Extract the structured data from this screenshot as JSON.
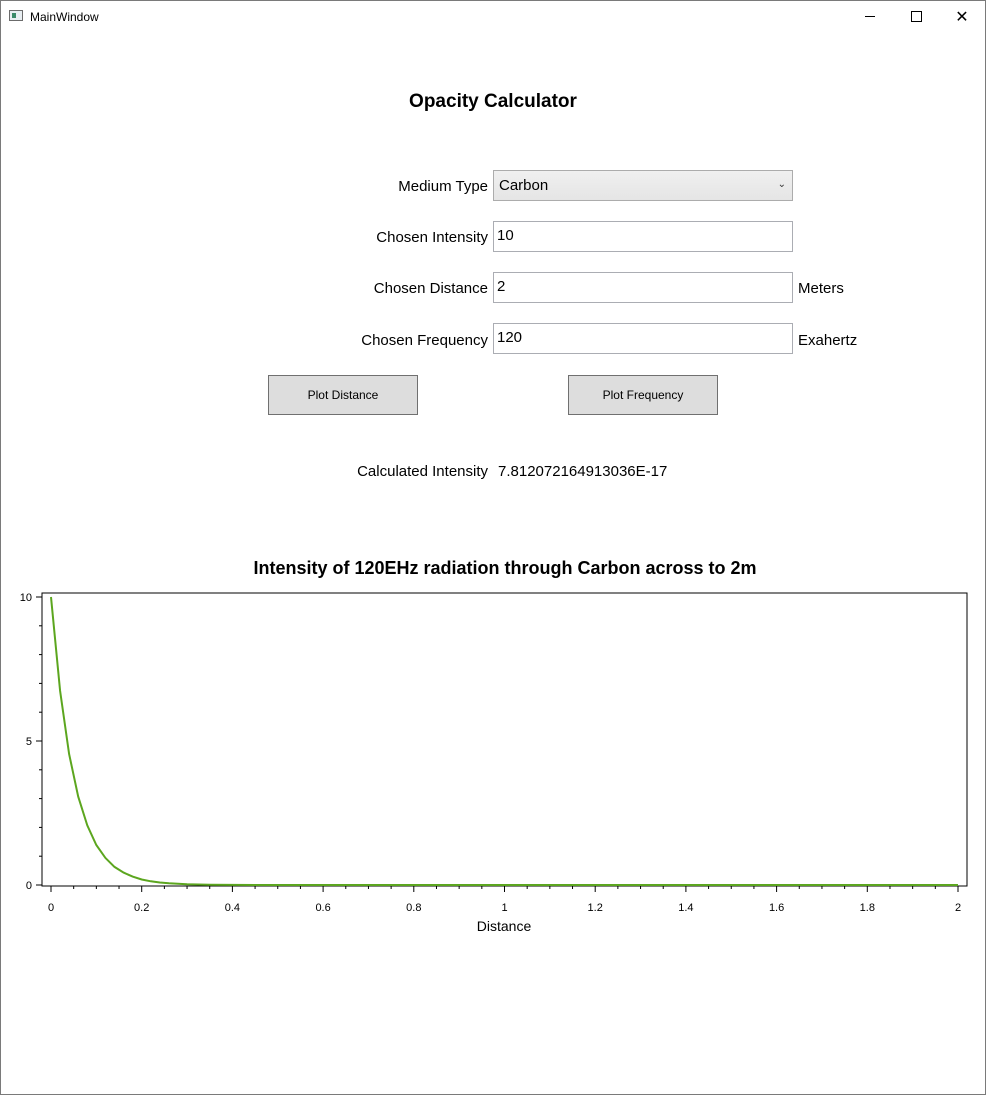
{
  "window": {
    "title": "MainWindow"
  },
  "page_title": "Opacity Calculator",
  "form": {
    "medium": {
      "label": "Medium Type",
      "value": "Carbon"
    },
    "intensity": {
      "label": "Chosen Intensity",
      "value": "10"
    },
    "distance": {
      "label": "Chosen Distance",
      "value": "2",
      "unit": "Meters"
    },
    "frequency": {
      "label": "Chosen Frequency",
      "value": "120",
      "unit": "Exahertz"
    }
  },
  "buttons": {
    "plot_distance": "Plot Distance",
    "plot_frequency": "Plot Frequency"
  },
  "result": {
    "label": "Calculated Intensity",
    "value": "7.812072164913036E-17"
  },
  "chart_data": {
    "type": "line",
    "title": "Intensity of 120EHz radiation through Carbon across to 2m",
    "xlabel": "Distance",
    "ylabel": "",
    "xlim": [
      0,
      2
    ],
    "ylim": [
      0,
      10
    ],
    "x_ticks": [
      "0",
      "0.2",
      "0.4",
      "0.6",
      "0.8",
      "1",
      "1.2",
      "1.4",
      "1.6",
      "1.8",
      "2"
    ],
    "y_ticks": [
      "0",
      "5",
      "10"
    ],
    "grid": false,
    "series": [
      {
        "color": "#5ca61f",
        "x": [
          0,
          0.02,
          0.04,
          0.06,
          0.08,
          0.1,
          0.12,
          0.14,
          0.16,
          0.18,
          0.2,
          0.22,
          0.24,
          0.26,
          0.28,
          0.3,
          0.35,
          0.4,
          0.5,
          0.6,
          0.8,
          1.0,
          1.2,
          1.4,
          1.6,
          1.8,
          2.0
        ],
        "y": [
          10,
          6.74,
          4.55,
          3.07,
          2.07,
          1.39,
          0.94,
          0.63,
          0.43,
          0.29,
          0.19,
          0.13,
          0.088,
          0.059,
          0.04,
          0.027,
          0.011,
          0.0037,
          0.0005,
          6e-05,
          0.0,
          0.0,
          0.0,
          0.0,
          0.0,
          0.0,
          0.0
        ]
      }
    ]
  }
}
